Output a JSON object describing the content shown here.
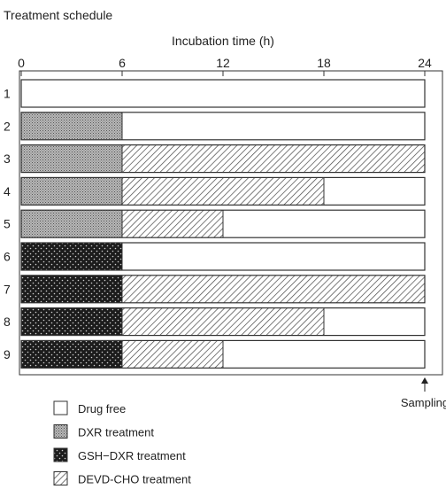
{
  "title": "Treatment schedule",
  "axis": {
    "label": "Incubation time (h)",
    "ticks": [
      "0",
      "6",
      "12",
      "18",
      "24"
    ],
    "range": [
      0,
      24
    ]
  },
  "sampling_label": "Sampling",
  "chart_data": {
    "type": "timeline",
    "xlabel": "Incubation time (h)",
    "xlim": [
      0,
      24
    ],
    "rows": [
      {
        "label": "1",
        "segments": [
          {
            "kind": "drug_free",
            "start": 0,
            "end": 24
          }
        ]
      },
      {
        "label": "2",
        "segments": [
          {
            "kind": "dxr",
            "start": 0,
            "end": 6
          },
          {
            "kind": "drug_free",
            "start": 6,
            "end": 24
          }
        ]
      },
      {
        "label": "3",
        "segments": [
          {
            "kind": "dxr",
            "start": 0,
            "end": 6
          },
          {
            "kind": "devd",
            "start": 6,
            "end": 24
          }
        ]
      },
      {
        "label": "4",
        "segments": [
          {
            "kind": "dxr",
            "start": 0,
            "end": 6
          },
          {
            "kind": "devd",
            "start": 6,
            "end": 18
          },
          {
            "kind": "drug_free",
            "start": 18,
            "end": 24
          }
        ]
      },
      {
        "label": "5",
        "segments": [
          {
            "kind": "dxr",
            "start": 0,
            "end": 6
          },
          {
            "kind": "devd",
            "start": 6,
            "end": 12
          },
          {
            "kind": "drug_free",
            "start": 12,
            "end": 24
          }
        ]
      },
      {
        "label": "6",
        "segments": [
          {
            "kind": "gsh",
            "start": 0,
            "end": 6
          },
          {
            "kind": "drug_free",
            "start": 6,
            "end": 24
          }
        ]
      },
      {
        "label": "7",
        "segments": [
          {
            "kind": "gsh",
            "start": 0,
            "end": 6
          },
          {
            "kind": "devd",
            "start": 6,
            "end": 24
          }
        ]
      },
      {
        "label": "8",
        "segments": [
          {
            "kind": "gsh",
            "start": 0,
            "end": 6
          },
          {
            "kind": "devd",
            "start": 6,
            "end": 18
          },
          {
            "kind": "drug_free",
            "start": 18,
            "end": 24
          }
        ]
      },
      {
        "label": "9",
        "segments": [
          {
            "kind": "gsh",
            "start": 0,
            "end": 6
          },
          {
            "kind": "devd",
            "start": 6,
            "end": 12
          },
          {
            "kind": "drug_free",
            "start": 12,
            "end": 24
          }
        ]
      }
    ]
  },
  "legend": [
    {
      "kind": "drug_free",
      "label": "Drug free"
    },
    {
      "kind": "dxr",
      "label": "DXR treatment"
    },
    {
      "kind": "gsh",
      "label": "GSH−DXR treatment"
    },
    {
      "kind": "devd",
      "label": "DEVD-CHO treatment"
    }
  ]
}
